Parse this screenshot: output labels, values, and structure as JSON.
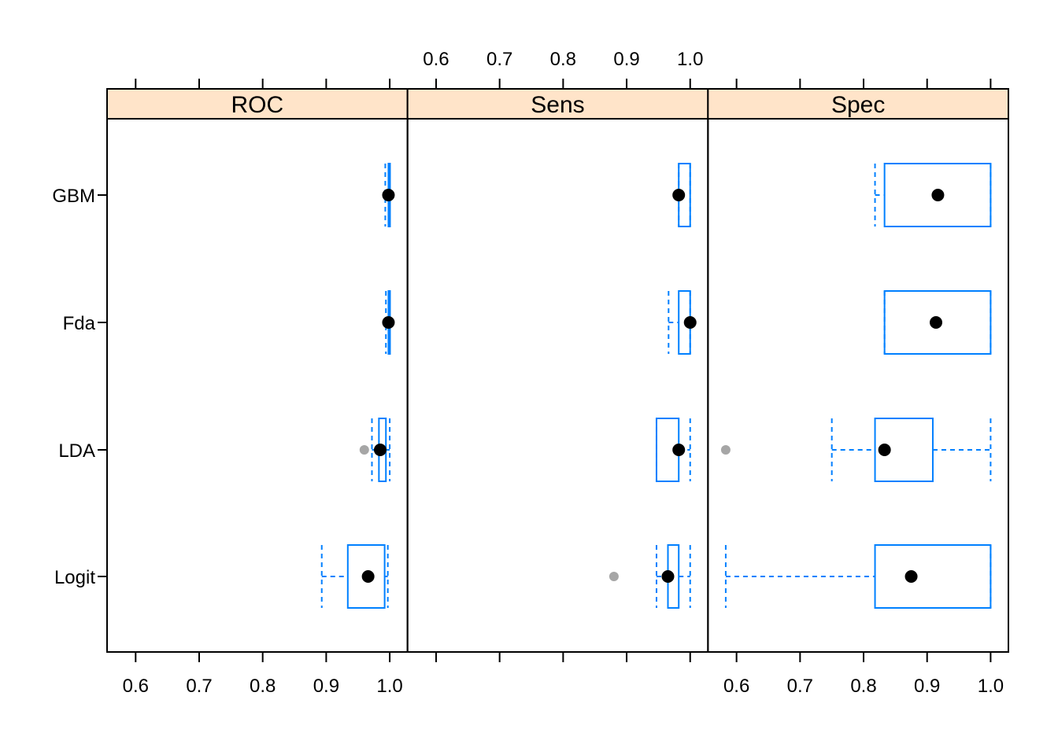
{
  "chart_data": {
    "type": "box",
    "panels": [
      "ROC",
      "Sens",
      "Spec"
    ],
    "categories": [
      "GBM",
      "Fda",
      "LDA",
      "Logit"
    ],
    "xlim": [
      0.555,
      1.028
    ],
    "ticks": [
      0.6,
      0.7,
      0.8,
      0.9,
      1.0
    ],
    "tick_labels": [
      "0.6",
      "0.7",
      "0.8",
      "0.9",
      "1.0"
    ],
    "strip_color": "#ffe4c9",
    "box_color": "#0080ff",
    "outlier_color": "#a6a6a6",
    "median_color": "#000000",
    "boxes": {
      "ROC": [
        {
          "model": "GBM",
          "whisker_low": 0.993,
          "q1": 0.998,
          "median": 0.998,
          "q3": 1.0,
          "whisker_high": 1.0,
          "outliers": []
        },
        {
          "model": "Fda",
          "whisker_low": 0.994,
          "q1": 0.998,
          "median": 0.998,
          "q3": 1.0,
          "whisker_high": 1.0,
          "outliers": []
        },
        {
          "model": "LDA",
          "whisker_low": 0.972,
          "q1": 0.983,
          "median": 0.985,
          "q3": 0.994,
          "whisker_high": 1.0,
          "outliers": [
            0.96
          ]
        },
        {
          "model": "Logit",
          "whisker_low": 0.893,
          "q1": 0.934,
          "median": 0.966,
          "q3": 0.992,
          "whisker_high": 0.997,
          "outliers": []
        }
      ],
      "Sens": [
        {
          "model": "GBM",
          "whisker_low": 0.982,
          "q1": 0.982,
          "median": 0.982,
          "q3": 1.0,
          "whisker_high": 1.0,
          "outliers": []
        },
        {
          "model": "Fda",
          "whisker_low": 0.966,
          "q1": 0.982,
          "median": 1.0,
          "q3": 1.0,
          "whisker_high": 1.0,
          "outliers": []
        },
        {
          "model": "LDA",
          "whisker_low": 0.947,
          "q1": 0.947,
          "median": 0.982,
          "q3": 0.982,
          "whisker_high": 1.0,
          "outliers": []
        },
        {
          "model": "Logit",
          "whisker_low": 0.947,
          "q1": 0.965,
          "median": 0.965,
          "q3": 0.982,
          "whisker_high": 1.0,
          "outliers": [
            0.88
          ]
        }
      ],
      "Spec": [
        {
          "model": "GBM",
          "whisker_low": 0.818,
          "q1": 0.833,
          "median": 0.917,
          "q3": 1.0,
          "whisker_high": 1.0,
          "outliers": []
        },
        {
          "model": "Fda",
          "whisker_low": 0.833,
          "q1": 0.833,
          "median": 0.914,
          "q3": 1.0,
          "whisker_high": 1.0,
          "outliers": []
        },
        {
          "model": "LDA",
          "whisker_low": 0.75,
          "q1": 0.818,
          "median": 0.833,
          "q3": 0.909,
          "whisker_high": 1.0,
          "outliers": [
            0.583
          ]
        },
        {
          "model": "Logit",
          "whisker_low": 0.583,
          "q1": 0.818,
          "median": 0.875,
          "q3": 1.0,
          "whisker_high": 1.0,
          "outliers": []
        }
      ]
    }
  }
}
